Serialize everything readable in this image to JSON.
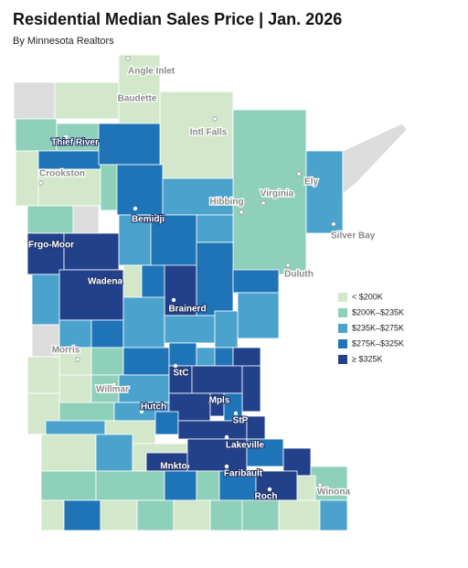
{
  "header": {
    "title": "Residential Median Sales Price  |  Jan. 2026",
    "subtitle": "By Minnesota Realtors"
  },
  "legend": [
    {
      "label": "< $200K",
      "color": "#d3e8cb"
    },
    {
      "label": "$200K–$235K",
      "color": "#8fd0bb"
    },
    {
      "label": "$235K–$275K",
      "color": "#4aa2cd"
    },
    {
      "label": "$275K–$325K",
      "color": "#1f74b8"
    },
    {
      "label": "≥ $325K",
      "color": "#23418b"
    }
  ],
  "cities": [
    "Angle Inlet",
    "Baudette",
    "Intl Falls",
    "Thief River",
    "Crookston",
    "Ely",
    "Hibbing",
    "Virginia",
    "Bemidji",
    "Silver Bay",
    "Duluth",
    "Frgo-Moor",
    "Wadena",
    "Brainerd",
    "Morris",
    "StC",
    "Willmar",
    "Hutch",
    "Mpls",
    "StP",
    "Lakeville",
    "Mnkto",
    "Faribault",
    "Winona",
    "Roch"
  ]
}
